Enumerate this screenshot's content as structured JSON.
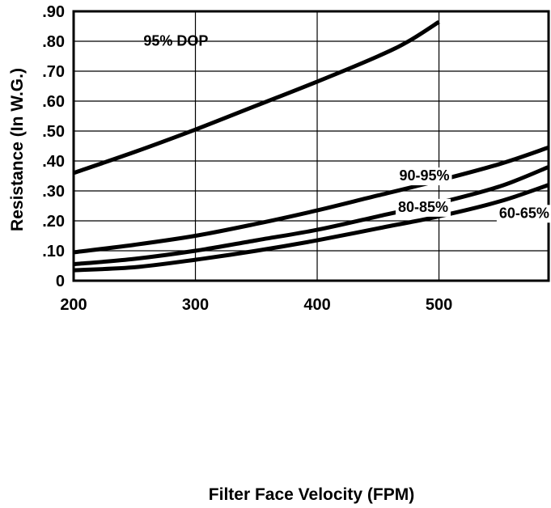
{
  "chart_data": {
    "type": "line",
    "title": "",
    "xlabel": "Filter Face Velocity (FPM)",
    "ylabel": "Resistance (In W.G.)",
    "xlim": [
      200,
      590
    ],
    "ylim": [
      0,
      0.9
    ],
    "grid": true,
    "x_ticks": [
      {
        "value": 200,
        "label": "200"
      },
      {
        "value": 300,
        "label": "300"
      },
      {
        "value": 400,
        "label": "400"
      },
      {
        "value": 500,
        "label": "500"
      }
    ],
    "y_ticks": [
      {
        "value": 0,
        "label": "0"
      },
      {
        "value": 0.1,
        "label": ".10"
      },
      {
        "value": 0.2,
        "label": ".20"
      },
      {
        "value": 0.3,
        "label": ".30"
      },
      {
        "value": 0.4,
        "label": ".40"
      },
      {
        "value": 0.5,
        "label": ".50"
      },
      {
        "value": 0.6,
        "label": ".60"
      },
      {
        "value": 0.7,
        "label": ".70"
      },
      {
        "value": 0.8,
        "label": ".80"
      },
      {
        "value": 0.9,
        "label": ".90"
      }
    ],
    "series": [
      {
        "name": "95% DOP",
        "x": [
          200,
          250,
          300,
          350,
          400,
          450,
          475,
          500
        ],
        "y": [
          0.36,
          0.43,
          0.505,
          0.585,
          0.665,
          0.75,
          0.8,
          0.865
        ]
      },
      {
        "name": "90-95%",
        "x": [
          200,
          250,
          300,
          350,
          400,
          450,
          500,
          550,
          590
        ],
        "y": [
          0.095,
          0.12,
          0.15,
          0.19,
          0.235,
          0.285,
          0.335,
          0.39,
          0.445
        ]
      },
      {
        "name": "80-85%",
        "x": [
          200,
          250,
          300,
          350,
          400,
          450,
          500,
          550,
          590
        ],
        "y": [
          0.055,
          0.073,
          0.1,
          0.135,
          0.17,
          0.215,
          0.26,
          0.315,
          0.38
        ]
      },
      {
        "name": "60-65%",
        "x": [
          200,
          250,
          300,
          350,
          400,
          450,
          500,
          550,
          590
        ],
        "y": [
          0.035,
          0.045,
          0.07,
          0.1,
          0.135,
          0.175,
          0.215,
          0.265,
          0.32
        ]
      }
    ]
  }
}
